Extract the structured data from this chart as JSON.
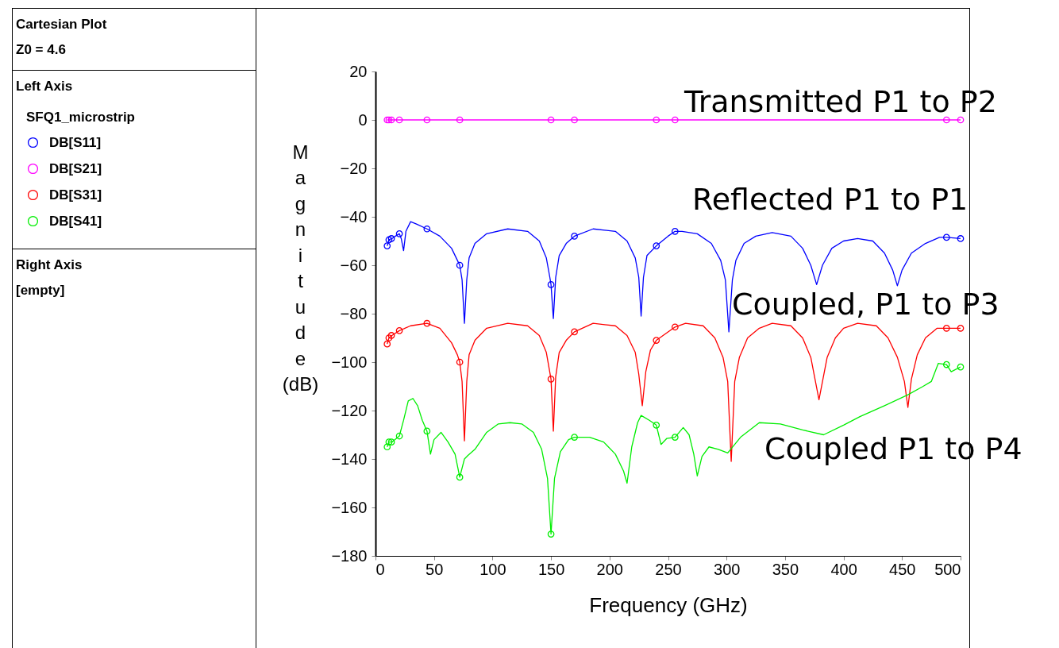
{
  "chart_data": {
    "type": "line",
    "title": "Cartesian Plot",
    "subtitle": "Z0 = 4.6",
    "xlabel": "Frequency (GHz)",
    "ylabel": "Magnitude (dB)",
    "legend_title": "SFQ1_microstrip",
    "legend": "left",
    "annotations": [
      "Left Axis",
      "Right Axis",
      "[empty]",
      "Transmitted P1 to P2",
      "Reflected P1 to P1",
      "Coupled, P1 to P3",
      "Coupled P1 to P4"
    ],
    "xlim": [
      0,
      500
    ],
    "xticks": [
      0,
      50,
      100,
      150,
      200,
      250,
      300,
      350,
      400,
      450,
      500
    ],
    "ylim": [
      -180,
      20
    ],
    "yticks": [
      20,
      0,
      -20,
      -40,
      -60,
      -80,
      -100,
      -120,
      -140,
      -160,
      -180
    ],
    "series": [
      {
        "name": "DB[S11]",
        "color": "#0000ff",
        "x": [
          10,
          11.5,
          14,
          17,
          20.4,
          22,
          24,
          26,
          30,
          35,
          44,
          55,
          65,
          70,
          72,
          74,
          76,
          78,
          80,
          85,
          95,
          113,
          130,
          140,
          146,
          149,
          150,
          152,
          154,
          157,
          163,
          170,
          186,
          205,
          215,
          222,
          225,
          227,
          229,
          232,
          240,
          250,
          256,
          262,
          275,
          287,
          295,
          299,
          302,
          305,
          308,
          315,
          325,
          339,
          355,
          365,
          372,
          377,
          382,
          390,
          400,
          412,
          425,
          435,
          442,
          446,
          450,
          458,
          470,
          482,
          488,
          500
        ],
        "values": [
          -52,
          -49.5,
          -49,
          -48,
          -47,
          -49,
          -54,
          -46,
          -42,
          -43,
          -45,
          -48,
          -53,
          -58,
          -60,
          -66,
          -84,
          -66,
          -57,
          -51,
          -47,
          -45,
          -46,
          -50,
          -57,
          -65,
          -68,
          -82,
          -65,
          -56,
          -51,
          -48,
          -45,
          -46,
          -50,
          -57,
          -65,
          -81,
          -65,
          -56,
          -52,
          -48,
          -46,
          -46,
          -47,
          -51,
          -58,
          -66,
          -87.5,
          -66,
          -58,
          -51,
          -48,
          -46.5,
          -48,
          -53,
          -60,
          -68,
          -60,
          -53,
          -50,
          -49,
          -50,
          -55,
          -62,
          -68.5,
          -62,
          -55,
          -51,
          -48.5,
          -48.5,
          -49
        ]
      },
      {
        "name": "DB[S21]",
        "color": "#ff00ff",
        "x": [
          10,
          500
        ],
        "values": [
          0,
          0
        ]
      },
      {
        "name": "DB[S31]",
        "color": "#ff0000",
        "x": [
          10,
          11.5,
          14,
          20.4,
          30,
          44,
          55,
          65,
          70,
          72,
          74,
          76,
          78,
          80,
          85,
          95,
          113,
          130,
          140,
          146,
          150,
          152,
          154,
          157,
          163,
          170,
          186,
          205,
          215,
          222,
          225,
          228,
          231,
          235,
          240,
          256,
          265,
          280,
          290,
          297,
          301,
          304,
          307,
          311,
          318,
          328,
          339,
          355,
          365,
          372,
          379,
          386,
          393,
          400,
          412,
          428,
          438,
          446,
          452,
          455,
          458,
          463,
          470,
          480,
          488,
          500
        ],
        "values": [
          -92.5,
          -90,
          -89,
          -87,
          -85,
          -84,
          -86,
          -92,
          -97,
          -100,
          -108,
          -132.5,
          -108,
          -97,
          -91,
          -86,
          -84,
          -85,
          -89,
          -96,
          -107,
          -128.5,
          -106,
          -96,
          -91,
          -87.5,
          -84,
          -85,
          -89,
          -96,
          -105,
          -118,
          -104,
          -95,
          -91,
          -85.5,
          -84,
          -85,
          -90,
          -98,
          -108,
          -141,
          -108,
          -98,
          -90,
          -86,
          -84,
          -85,
          -90,
          -98,
          -115.5,
          -98,
          -90,
          -86,
          -84,
          -85,
          -90,
          -98,
          -108,
          -118.7,
          -107,
          -97,
          -90,
          -86,
          -86,
          -86
        ]
      },
      {
        "name": "DB[S41]",
        "color": "#00ee00",
        "x": [
          10,
          11.5,
          14,
          20.4,
          24,
          28,
          32,
          36,
          40,
          44,
          47,
          50,
          56,
          62,
          68,
          72,
          76,
          79,
          85,
          95,
          105,
          115,
          125,
          135,
          142,
          147,
          150,
          153,
          158,
          165,
          170,
          183,
          195,
          205,
          212,
          215,
          219,
          224,
          227,
          234,
          240,
          244,
          249,
          256,
          263,
          268,
          272,
          275,
          279,
          285,
          293,
          301,
          312,
          328,
          346,
          365,
          383,
          400,
          414,
          435,
          455,
          468,
          475,
          481,
          488,
          492,
          500
        ],
        "values": [
          -135,
          -133,
          -133,
          -130.5,
          -124,
          -116,
          -115,
          -118,
          -124,
          -128.5,
          -138,
          -132,
          -129,
          -133,
          -138,
          -147.5,
          -140,
          -138.5,
          -136,
          -129,
          -125.5,
          -125,
          -125.5,
          -129,
          -136,
          -148,
          -171,
          -148,
          -137,
          -132,
          -131,
          -131,
          -133,
          -138,
          -145,
          -150,
          -135,
          -125,
          -122,
          -124,
          -126,
          -134,
          -131.5,
          -131,
          -127,
          -130,
          -138,
          -147,
          -139,
          -135,
          -136,
          -137.5,
          -131,
          -125,
          -125.5,
          -128,
          -130,
          -126,
          -122.5,
          -118,
          -113.5,
          -110,
          -108,
          -100.5,
          -101,
          -104,
          -102
        ]
      },
      {
        "type": "scatter",
        "color": "#0000ff",
        "x": [
          10,
          11.5,
          13.6,
          20.4,
          44,
          72,
          150,
          170,
          240,
          256,
          488,
          500
        ],
        "values": [
          -52,
          -49.5,
          -49,
          -47,
          -45,
          -60,
          -68,
          -48,
          -52,
          -46,
          -48.5,
          -49
        ]
      },
      {
        "type": "scatter",
        "color": "#ff00ff",
        "x": [
          10,
          11.5,
          13.6,
          20.4,
          44,
          72,
          150,
          170,
          240,
          256,
          488,
          500
        ],
        "values": [
          0,
          0,
          0,
          0,
          0,
          0,
          0,
          0,
          0,
          0,
          0,
          0
        ]
      },
      {
        "type": "scatter",
        "color": "#ff0000",
        "x": [
          10,
          11.5,
          13.6,
          20.4,
          44,
          72,
          150,
          170,
          240,
          256,
          488,
          500
        ],
        "values": [
          -92.5,
          -90,
          -89,
          -87,
          -84,
          -100,
          -107,
          -87.5,
          -91,
          -85.5,
          -86,
          -86
        ]
      },
      {
        "type": "scatter",
        "color": "#00ee00",
        "x": [
          10,
          11.5,
          13.6,
          20.4,
          44,
          72,
          150,
          170,
          240,
          256,
          488,
          500
        ],
        "values": [
          -135,
          -133,
          -133,
          -130.5,
          -128.5,
          -147.5,
          -171,
          -131,
          -126,
          -131,
          -101,
          -102
        ]
      }
    ]
  }
}
